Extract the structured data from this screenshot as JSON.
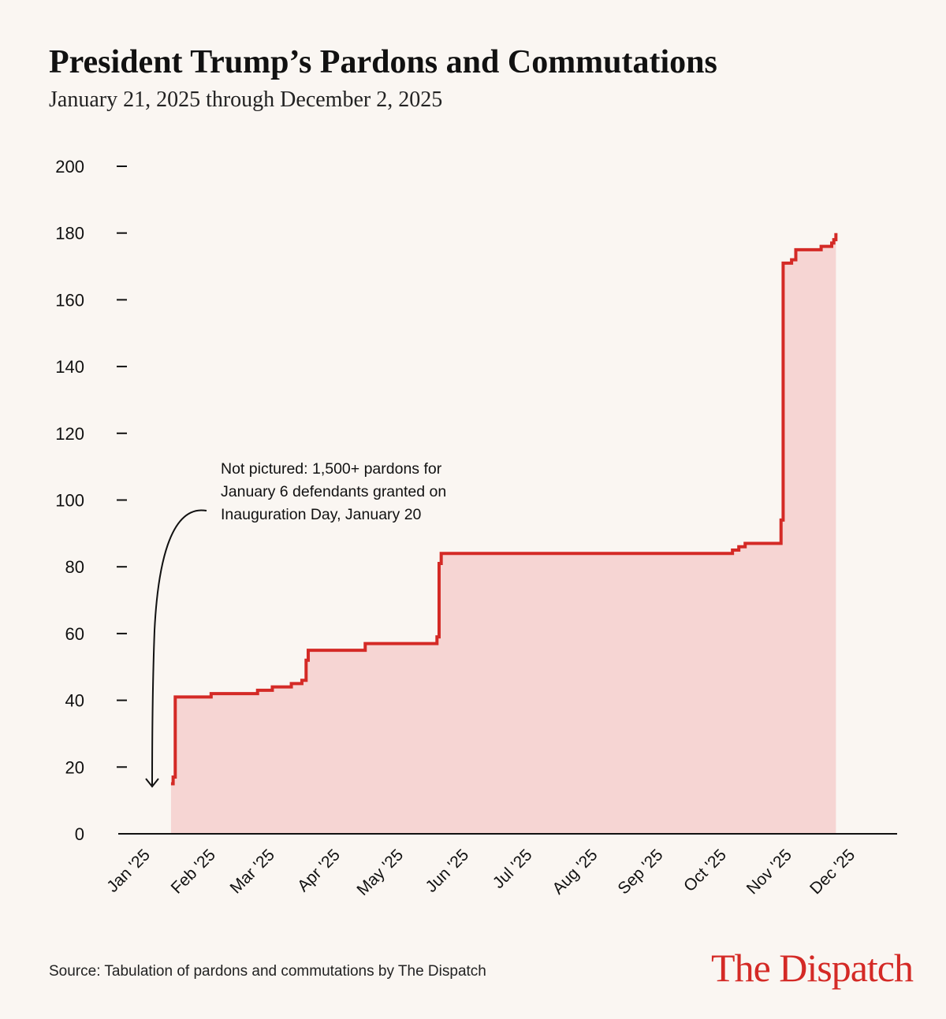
{
  "chart_data": {
    "type": "step-area",
    "title": "President Trump’s Pardons and Commutations",
    "subtitle": "January 21, 2025 through December 2, 2025",
    "source": "Source: Tabulation of pardons and commutations by The Dispatch",
    "brand": "The Dispatch",
    "annotation": [
      "Not pictured: 1,500+ pardons for",
      "January 6 defendants granted on",
      "Inauguration Day, January 20"
    ],
    "color": "#d42a26",
    "fill_color": "#f6d5d3",
    "x": [
      "2025-01-21",
      "2025-01-22",
      "2025-01-23",
      "2025-02-09",
      "2025-03-03",
      "2025-03-10",
      "2025-03-19",
      "2025-03-24",
      "2025-03-26",
      "2025-03-27",
      "2025-04-23",
      "2025-05-27",
      "2025-05-28",
      "2025-05-29",
      "2025-10-14",
      "2025-10-17",
      "2025-10-20",
      "2025-11-06",
      "2025-11-07",
      "2025-11-11",
      "2025-11-13",
      "2025-11-25",
      "2025-11-30",
      "2025-12-01",
      "2025-12-02"
    ],
    "values": [
      15,
      17,
      41,
      42,
      43,
      44,
      45,
      46,
      52,
      55,
      57,
      59,
      81,
      84,
      85,
      86,
      87,
      94,
      171,
      172,
      175,
      176,
      177,
      178,
      180
    ],
    "xlim": [
      "2024-12-27",
      "2025-12-31"
    ],
    "xticks": [
      {
        "value": "2025-01-01",
        "label": "Jan '25"
      },
      {
        "value": "2025-02-01",
        "label": "Feb '25"
      },
      {
        "value": "2025-03-01",
        "label": "Mar '25"
      },
      {
        "value": "2025-04-01",
        "label": "Apr '25"
      },
      {
        "value": "2025-05-01",
        "label": "May '25"
      },
      {
        "value": "2025-06-01",
        "label": "Jun '25"
      },
      {
        "value": "2025-07-01",
        "label": "Jul '25"
      },
      {
        "value": "2025-08-01",
        "label": "Aug '25"
      },
      {
        "value": "2025-09-01",
        "label": "Sep '25"
      },
      {
        "value": "2025-10-01",
        "label": "Oct '25"
      },
      {
        "value": "2025-11-01",
        "label": "Nov '25"
      },
      {
        "value": "2025-12-01",
        "label": "Dec '25"
      }
    ],
    "ylim": [
      0,
      200
    ],
    "yticks": [
      0,
      20,
      40,
      60,
      80,
      100,
      120,
      140,
      160,
      180,
      200
    ]
  }
}
